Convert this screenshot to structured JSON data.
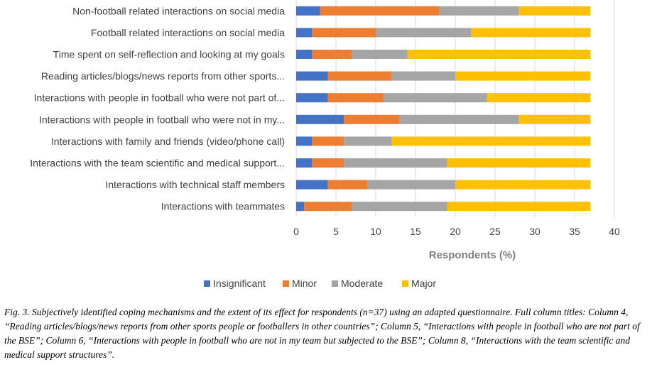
{
  "chart_data": {
    "type": "bar",
    "orientation": "horizontal",
    "stacked": true,
    "categories": [
      "Non-football related interactions on social media",
      "Football related interactions on social media",
      "Time spent on self-reflection and looking at my goals",
      "Reading articles/blogs/news reports from other sports...",
      "Interactions with people in football who were not part of...",
      "Interactions with people in football who were not in my...",
      "Interactions with family and friends (video/phone call)",
      "Interactions with the team scientific and medical support...",
      "Interactions with technical staff members",
      "Interactions with teammates"
    ],
    "series": [
      {
        "name": "Insignificant",
        "color": "#4472c4",
        "values": [
          3,
          2,
          2,
          4,
          4,
          6,
          2,
          2,
          4,
          1
        ]
      },
      {
        "name": "Minor",
        "color": "#ed7d31",
        "values": [
          15,
          8,
          5,
          8,
          7,
          7,
          4,
          4,
          5,
          6
        ]
      },
      {
        "name": "Moderate",
        "color": "#a5a5a5",
        "values": [
          10,
          12,
          7,
          8,
          13,
          15,
          6,
          13,
          11,
          12
        ]
      },
      {
        "name": "Major",
        "color": "#ffc000",
        "values": [
          9,
          15,
          23,
          17,
          13,
          9,
          25,
          18,
          17,
          18
        ]
      }
    ],
    "xticks": [
      "0",
      "5",
      "10",
      "15",
      "20",
      "25",
      "30",
      "35",
      "40"
    ],
    "xlim": [
      0,
      40
    ],
    "xlabel": "Respondents (%)",
    "grid": true,
    "legend_position": "bottom"
  },
  "caption": {
    "fig_label": "Fig. 3.",
    "text": "Subjectively identified coping mechanisms and the extent of its effect for respondents (n=37) using an adapted questionnaire. Full column titles: Column 4, “Reading articles/blogs/news reports from other sports people or footballers in other countries”; Column 5, “Interactions with people in football who are not part of the BSE”; Column 6, “Interactions with people in football who are not in my team but subjected to the BSE”; Column 8, “Interactions with the team scientific and medical support structures”."
  }
}
